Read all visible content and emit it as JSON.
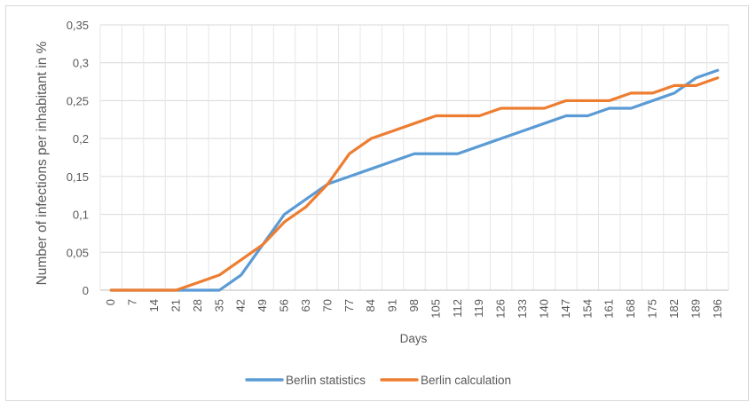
{
  "chart_data": {
    "type": "line",
    "xlabel": "Days",
    "ylabel": "Number of infections per inhabitant in %",
    "x": [
      0,
      7,
      14,
      21,
      28,
      35,
      42,
      49,
      56,
      63,
      70,
      77,
      84,
      91,
      98,
      105,
      112,
      119,
      126,
      133,
      140,
      147,
      154,
      161,
      168,
      175,
      182,
      189,
      196
    ],
    "x_tick_labels": [
      "0",
      "7",
      "14",
      "21",
      "28",
      "35",
      "42",
      "49",
      "56",
      "63",
      "70",
      "77",
      "84",
      "91",
      "98",
      "105",
      "112",
      "119",
      "126",
      "133",
      "140",
      "147",
      "154",
      "161",
      "168",
      "175",
      "182",
      "189",
      "196"
    ],
    "ylim": [
      0,
      0.35
    ],
    "y_ticks": [
      0,
      0.05,
      0.1,
      0.15,
      0.2,
      0.25,
      0.3,
      0.35
    ],
    "y_tick_labels": [
      "0",
      "0,05",
      "0,1",
      "0,15",
      "0,2",
      "0,25",
      "0,3",
      "0,35"
    ],
    "grid": true,
    "legend_position": "bottom",
    "series": [
      {
        "name": "Berlin statistics",
        "color": "#5b9bd5",
        "values": [
          0,
          0,
          0,
          0,
          0,
          0,
          0.02,
          0.06,
          0.1,
          0.12,
          0.14,
          0.15,
          0.16,
          0.17,
          0.18,
          0.18,
          0.18,
          0.19,
          0.2,
          0.21,
          0.22,
          0.23,
          0.23,
          0.24,
          0.24,
          0.25,
          0.26,
          0.28,
          0.29
        ]
      },
      {
        "name": "Berlin calculation",
        "color": "#ed7d31",
        "values": [
          0,
          0,
          0,
          0,
          0.01,
          0.02,
          0.04,
          0.06,
          0.09,
          0.11,
          0.14,
          0.18,
          0.2,
          0.21,
          0.22,
          0.23,
          0.23,
          0.23,
          0.24,
          0.24,
          0.24,
          0.25,
          0.25,
          0.25,
          0.26,
          0.26,
          0.27,
          0.27,
          0.28
        ]
      }
    ]
  }
}
